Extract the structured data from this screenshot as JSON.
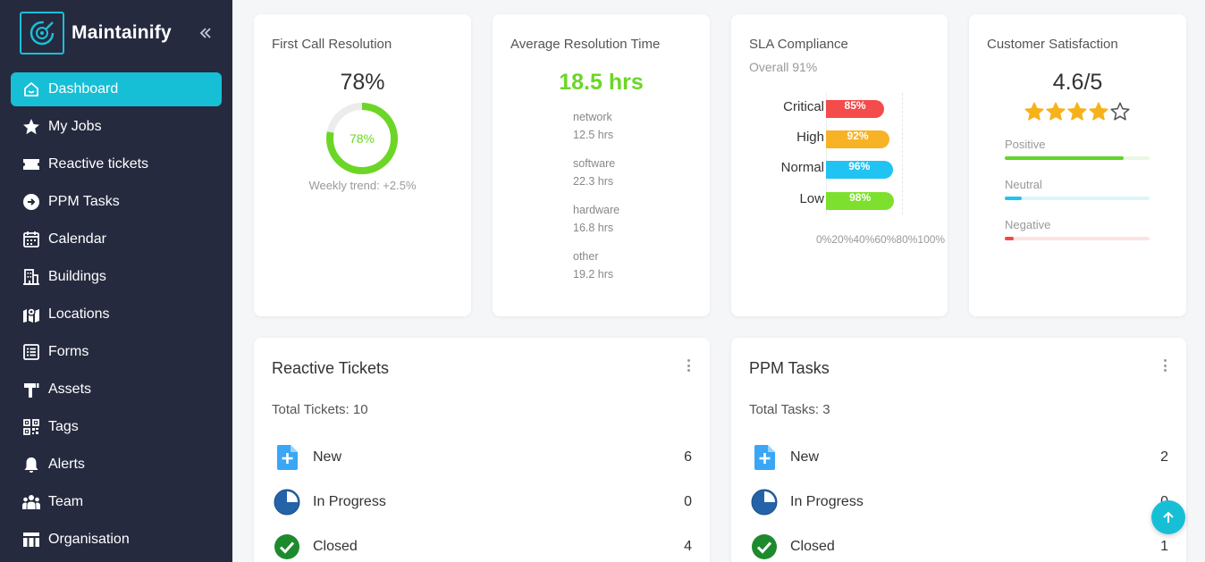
{
  "brand": {
    "name": "Maintainify"
  },
  "sidebar": {
    "items": [
      {
        "label": "Dashboard",
        "icon": "home-icon"
      },
      {
        "label": "My Jobs",
        "icon": "star-icon"
      },
      {
        "label": "Reactive tickets",
        "icon": "ticket-icon"
      },
      {
        "label": "PPM Tasks",
        "icon": "arrow-circle-icon"
      },
      {
        "label": "Calendar",
        "icon": "calendar-icon"
      },
      {
        "label": "Buildings",
        "icon": "building-icon"
      },
      {
        "label": "Locations",
        "icon": "map-icon"
      },
      {
        "label": "Forms",
        "icon": "list-icon"
      },
      {
        "label": "Assets",
        "icon": "asset-icon"
      },
      {
        "label": "Tags",
        "icon": "qr-icon"
      },
      {
        "label": "Alerts",
        "icon": "bell-icon"
      },
      {
        "label": "Team",
        "icon": "team-icon"
      },
      {
        "label": "Organisation",
        "icon": "table-icon"
      }
    ]
  },
  "kpi": {
    "fcr": {
      "title": "First Call Resolution",
      "value": "78%",
      "ring_label": "78%",
      "ring_percent": 78,
      "trend": "Weekly trend: +2.5%"
    },
    "art": {
      "title": "Average Resolution Time",
      "value": "18.5 hrs",
      "categories": [
        {
          "name": "network",
          "value": "12.5 hrs"
        },
        {
          "name": "software",
          "value": "22.3 hrs"
        },
        {
          "name": "hardware",
          "value": "16.8 hrs"
        },
        {
          "name": "other",
          "value": "19.2 hrs"
        }
      ]
    },
    "sla": {
      "title": "SLA Compliance",
      "subtitle": "Overall 91%",
      "rows": [
        {
          "label": "Critical",
          "value": 85,
          "text": "85%",
          "color": "#f44b4b"
        },
        {
          "label": "High",
          "value": 92,
          "text": "92%",
          "color": "#f7b325"
        },
        {
          "label": "Normal",
          "value": 96,
          "text": "96%",
          "color": "#21c3f2"
        },
        {
          "label": "Low",
          "value": 98,
          "text": "98%",
          "color": "#7ee02e"
        }
      ],
      "axis_ticks": "0%20%40%60%80%100%"
    },
    "csat": {
      "title": "Customer Satisfaction",
      "value": "4.6/5",
      "rating": 4.6,
      "sentiments": [
        {
          "label": "Positive",
          "percent": 82,
          "color": "#62d62a",
          "track": "#e9f9e2"
        },
        {
          "label": "Neutral",
          "percent": 12,
          "color": "#21c3f2",
          "track": "#dcf5fc"
        },
        {
          "label": "Negative",
          "percent": 6,
          "color": "#f04848",
          "track": "#fde3e3"
        }
      ]
    }
  },
  "reactive": {
    "title": "Reactive Tickets",
    "total": "Total Tickets: 10",
    "rows": [
      {
        "label": "New",
        "count": "6"
      },
      {
        "label": "In Progress",
        "count": "0"
      },
      {
        "label": "Closed",
        "count": "4"
      }
    ]
  },
  "ppm": {
    "title": "PPM Tasks",
    "total": "Total Tasks: 3",
    "rows": [
      {
        "label": "New",
        "count": "2"
      },
      {
        "label": "In Progress",
        "count": "0"
      },
      {
        "label": "Closed",
        "count": "1"
      }
    ]
  },
  "colors": {
    "accent": "#17bfd6",
    "sidebar": "#262a3f",
    "green": "#6cd626"
  }
}
